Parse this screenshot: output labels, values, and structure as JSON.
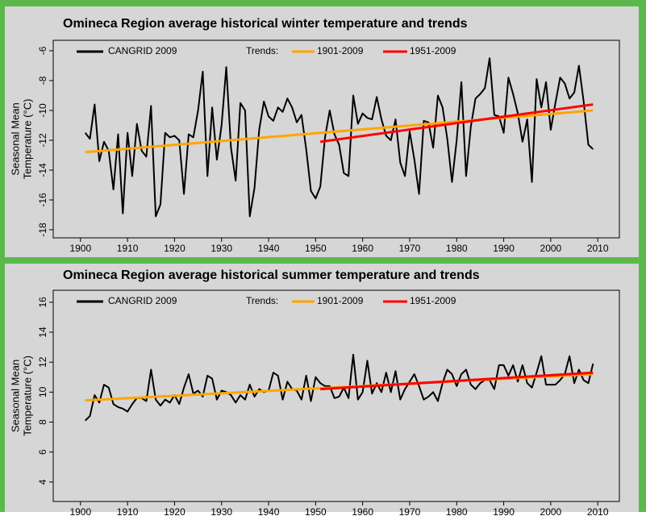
{
  "chart_data": [
    {
      "type": "line",
      "title": "Omineca Region  average historical winter temperature and trends",
      "ylabel": [
        "Seasonal Mean",
        "Temperature (°C)"
      ],
      "legend_label": "Trends:",
      "xlim": [
        1894.2,
        2014.6
      ],
      "xticks": [
        1900,
        1910,
        1920,
        1930,
        1940,
        1950,
        1960,
        1970,
        1980,
        1990,
        2000,
        2010
      ],
      "ylim": [
        -18.54,
        -5.3
      ],
      "yticks": [
        -18,
        -16,
        -14,
        -12,
        -10,
        -8,
        -6
      ],
      "series": [
        {
          "name": "CANGRID 2009",
          "color": "#000000",
          "x": [
            1901,
            1902,
            1903,
            1904,
            1905,
            1906,
            1907,
            1908,
            1909,
            1910,
            1911,
            1912,
            1913,
            1914,
            1915,
            1916,
            1917,
            1918,
            1919,
            1920,
            1921,
            1922,
            1923,
            1924,
            1925,
            1926,
            1927,
            1928,
            1929,
            1930,
            1931,
            1932,
            1933,
            1934,
            1935,
            1936,
            1937,
            1938,
            1939,
            1940,
            1941,
            1942,
            1943,
            1944,
            1945,
            1946,
            1947,
            1948,
            1949,
            1950,
            1951,
            1952,
            1953,
            1954,
            1955,
            1956,
            1957,
            1958,
            1959,
            1960,
            1961,
            1962,
            1963,
            1964,
            1965,
            1966,
            1967,
            1968,
            1969,
            1970,
            1971,
            1972,
            1973,
            1974,
            1975,
            1976,
            1977,
            1978,
            1979,
            1980,
            1981,
            1982,
            1983,
            1984,
            1985,
            1986,
            1987,
            1988,
            1989,
            1990,
            1991,
            1992,
            1993,
            1994,
            1995,
            1996,
            1997,
            1998,
            1999,
            2000,
            2001,
            2002,
            2003,
            2004,
            2005,
            2006,
            2007,
            2008,
            2009
          ],
          "values": [
            -11.5,
            -11.9,
            -9.6,
            -13.4,
            -12.1,
            -12.7,
            -15.3,
            -11.6,
            -16.9,
            -11.5,
            -14.4,
            -10.9,
            -12.7,
            -13.1,
            -9.7,
            -17.1,
            -16.3,
            -11.5,
            -11.8,
            -11.7,
            -12.0,
            -15.6,
            -11.6,
            -11.8,
            -10.0,
            -7.4,
            -14.4,
            -9.8,
            -13.3,
            -11.0,
            -7.1,
            -12.5,
            -14.7,
            -9.5,
            -10.0,
            -17.1,
            -15.2,
            -11.3,
            -9.4,
            -10.4,
            -10.7,
            -9.8,
            -10.1,
            -9.2,
            -9.8,
            -10.8,
            -10.3,
            -12.6,
            -15.4,
            -15.9,
            -15.1,
            -11.8,
            -10.0,
            -11.6,
            -12.3,
            -14.2,
            -14.4,
            -9.0,
            -10.9,
            -10.2,
            -10.5,
            -10.6,
            -9.1,
            -10.6,
            -11.7,
            -12.0,
            -10.6,
            -13.5,
            -14.4,
            -11.4,
            -13.3,
            -15.6,
            -10.7,
            -10.8,
            -12.5,
            -9.0,
            -9.8,
            -11.9,
            -14.8,
            -12.0,
            -8.1,
            -14.4,
            -11.1,
            -9.2,
            -8.9,
            -8.5,
            -6.5,
            -10.3,
            -10.4,
            -11.5,
            -7.8,
            -8.9,
            -10.2,
            -12.1,
            -10.6,
            -14.8,
            -7.9,
            -9.8,
            -8.1,
            -11.3,
            -9.5,
            -7.8,
            -8.2,
            -9.2,
            -8.8,
            -7.0,
            -9.4,
            -12.3,
            -12.6
          ]
        },
        {
          "name": "1901-2009",
          "color": "#ffa500",
          "x": [
            1901,
            2009
          ],
          "values": [
            -12.8,
            -10.0
          ]
        },
        {
          "name": "1951-2009",
          "color": "#ff0000",
          "x": [
            1951,
            2009
          ],
          "values": [
            -12.1,
            -9.6
          ]
        }
      ]
    },
    {
      "type": "line",
      "title": "Omineca Region  average historical summer temperature and trends",
      "ylabel": [
        "Seasonal Mean",
        "Temperature (°C)"
      ],
      "legend_label": "Trends:",
      "xlim": [
        1894.2,
        2014.6
      ],
      "xticks": [
        1900,
        1910,
        1920,
        1930,
        1940,
        1950,
        1960,
        1970,
        1980,
        1990,
        2000,
        2010
      ],
      "ylim": [
        2.7,
        16.8
      ],
      "yticks": [
        4,
        6,
        8,
        10,
        12,
        14,
        16
      ],
      "series": [
        {
          "name": "CANGRID 2009",
          "color": "#000000",
          "x": [
            1901,
            1902,
            1903,
            1904,
            1905,
            1906,
            1907,
            1908,
            1909,
            1910,
            1911,
            1912,
            1913,
            1914,
            1915,
            1916,
            1917,
            1918,
            1919,
            1920,
            1921,
            1922,
            1923,
            1924,
            1925,
            1926,
            1927,
            1928,
            1929,
            1930,
            1931,
            1932,
            1933,
            1934,
            1935,
            1936,
            1937,
            1938,
            1939,
            1940,
            1941,
            1942,
            1943,
            1944,
            1945,
            1946,
            1947,
            1948,
            1949,
            1950,
            1951,
            1952,
            1953,
            1954,
            1955,
            1956,
            1957,
            1958,
            1959,
            1960,
            1961,
            1962,
            1963,
            1964,
            1965,
            1966,
            1967,
            1968,
            1969,
            1970,
            1971,
            1972,
            1973,
            1974,
            1975,
            1976,
            1977,
            1978,
            1979,
            1980,
            1981,
            1982,
            1983,
            1984,
            1985,
            1986,
            1987,
            1988,
            1989,
            1990,
            1991,
            1992,
            1993,
            1994,
            1995,
            1996,
            1997,
            1998,
            1999,
            2000,
            2001,
            2002,
            2003,
            2004,
            2005,
            2006,
            2007,
            2008,
            2009
          ],
          "values": [
            8.1,
            8.4,
            9.8,
            9.3,
            10.5,
            10.3,
            9.2,
            9.0,
            8.9,
            8.7,
            9.2,
            9.6,
            9.6,
            9.4,
            11.5,
            9.5,
            9.1,
            9.5,
            9.3,
            9.8,
            9.2,
            10.3,
            11.2,
            9.9,
            10.1,
            9.7,
            11.1,
            10.9,
            9.5,
            10.1,
            10.0,
            9.8,
            9.3,
            9.8,
            9.5,
            10.5,
            9.7,
            10.2,
            10.0,
            10.1,
            11.3,
            11.1,
            9.5,
            10.7,
            10.2,
            10.1,
            9.5,
            11.1,
            9.4,
            11.0,
            10.6,
            10.4,
            10.4,
            9.6,
            9.7,
            10.3,
            9.6,
            12.5,
            9.5,
            10.0,
            12.1,
            9.9,
            10.6,
            10.0,
            11.3,
            10.0,
            11.4,
            9.5,
            10.2,
            10.7,
            11.2,
            10.4,
            9.5,
            9.7,
            10.0,
            9.4,
            10.6,
            11.5,
            11.2,
            10.4,
            11.2,
            11.5,
            10.5,
            10.2,
            10.6,
            10.8,
            10.8,
            10.2,
            11.8,
            11.8,
            11.1,
            11.8,
            10.7,
            11.8,
            10.6,
            10.3,
            11.3,
            12.4,
            10.5,
            10.5,
            10.5,
            10.8,
            11.2,
            12.4,
            10.6,
            11.5,
            10.8,
            10.6,
            11.9
          ]
        },
        {
          "name": "1901-2009",
          "color": "#ffa500",
          "x": [
            1901,
            2009
          ],
          "values": [
            9.45,
            11.2
          ]
        },
        {
          "name": "1951-2009",
          "color": "#ff0000",
          "x": [
            1951,
            2009
          ],
          "values": [
            10.2,
            11.3
          ]
        }
      ]
    }
  ]
}
